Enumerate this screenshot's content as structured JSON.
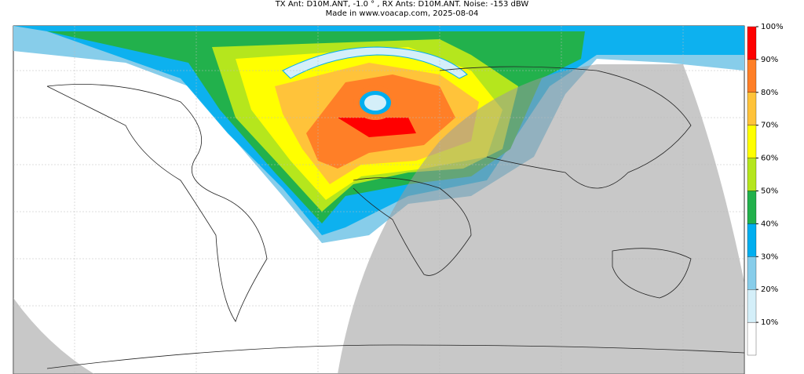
{
  "header": {
    "line1": "TX Ant: D10M.ANT, -1.0 ° , RX Ants: D10M.ANT. Noise: -153 dBW",
    "line2": "Made in www.voacap.com, 2025-08-04"
  },
  "colorbar": {
    "range": [
      0,
      100
    ],
    "ticks": [
      {
        "value": 10,
        "label": "10%"
      },
      {
        "value": 20,
        "label": "20%"
      },
      {
        "value": 30,
        "label": "30%"
      },
      {
        "value": 40,
        "label": "40%"
      },
      {
        "value": 50,
        "label": "50%"
      },
      {
        "value": 60,
        "label": "60%"
      },
      {
        "value": 70,
        "label": "70%"
      },
      {
        "value": 80,
        "label": "80%"
      },
      {
        "value": 90,
        "label": "90%"
      },
      {
        "value": 100,
        "label": "100%"
      }
    ],
    "colors": [
      "#ffffff",
      "#d4eff9",
      "#87cdea",
      "#00aeef",
      "#22b14c",
      "#b5e61d",
      "#ffff00",
      "#ffc33a",
      "#ff7f27",
      "#ff0000"
    ]
  }
}
